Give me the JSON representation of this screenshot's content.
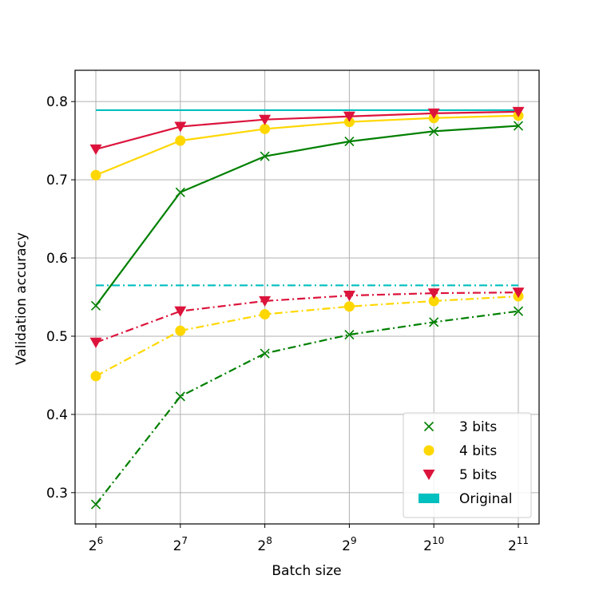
{
  "chart_data": {
    "type": "line",
    "xlabel": "Batch size",
    "ylabel": "Validation accuracy",
    "x": [
      6,
      7,
      8,
      9,
      10,
      11
    ],
    "xtick_base": "2",
    "xtick_exponents": [
      "6",
      "7",
      "8",
      "9",
      "10",
      "11"
    ],
    "xlim": [
      6,
      11
    ],
    "ylim": [
      0.26,
      0.84
    ],
    "yticks": [
      0.3,
      0.4,
      0.5,
      0.6,
      0.7,
      0.8
    ],
    "ytick_labels": [
      "0.3",
      "0.4",
      "0.5",
      "0.6",
      "0.7",
      "0.8"
    ],
    "grid": true,
    "legend_position": "bottom-right",
    "series": [
      {
        "name": "3 bits",
        "group": "solid",
        "color": "#008000",
        "marker": "x",
        "values": [
          0.539,
          0.684,
          0.73,
          0.749,
          0.762,
          0.769
        ]
      },
      {
        "name": "4 bits",
        "group": "solid",
        "color": "#FFD700",
        "marker": "circle",
        "values": [
          0.706,
          0.75,
          0.765,
          0.774,
          0.779,
          0.782
        ]
      },
      {
        "name": "5 bits",
        "group": "solid",
        "color": "#DC143C",
        "marker": "triangle-down",
        "values": [
          0.739,
          0.768,
          0.777,
          0.781,
          0.785,
          0.787
        ]
      },
      {
        "name": "3 bits",
        "group": "dashdot",
        "color": "#008000",
        "marker": "x",
        "values": [
          0.285,
          0.423,
          0.478,
          0.502,
          0.518,
          0.532
        ]
      },
      {
        "name": "4 bits",
        "group": "dashdot",
        "color": "#FFD700",
        "marker": "circle",
        "values": [
          0.449,
          0.507,
          0.528,
          0.538,
          0.545,
          0.551
        ]
      },
      {
        "name": "5 bits",
        "group": "dashdot",
        "color": "#DC143C",
        "marker": "triangle-down",
        "values": [
          0.492,
          0.532,
          0.545,
          0.552,
          0.555,
          0.556
        ]
      }
    ],
    "reference_lines": [
      {
        "name": "Original",
        "color": "#00BFBF",
        "style": "solid",
        "value": 0.789
      },
      {
        "name": "Original",
        "color": "#00BFBF",
        "style": "dashdot",
        "value": 0.565
      }
    ],
    "legend": [
      {
        "label": "3 bits",
        "color": "#008000",
        "marker": "x"
      },
      {
        "label": "4 bits",
        "color": "#FFD700",
        "marker": "circle"
      },
      {
        "label": "5 bits",
        "color": "#DC143C",
        "marker": "triangle-down"
      },
      {
        "label": "Original",
        "color": "#00BFBF",
        "marker": "patch"
      }
    ]
  }
}
